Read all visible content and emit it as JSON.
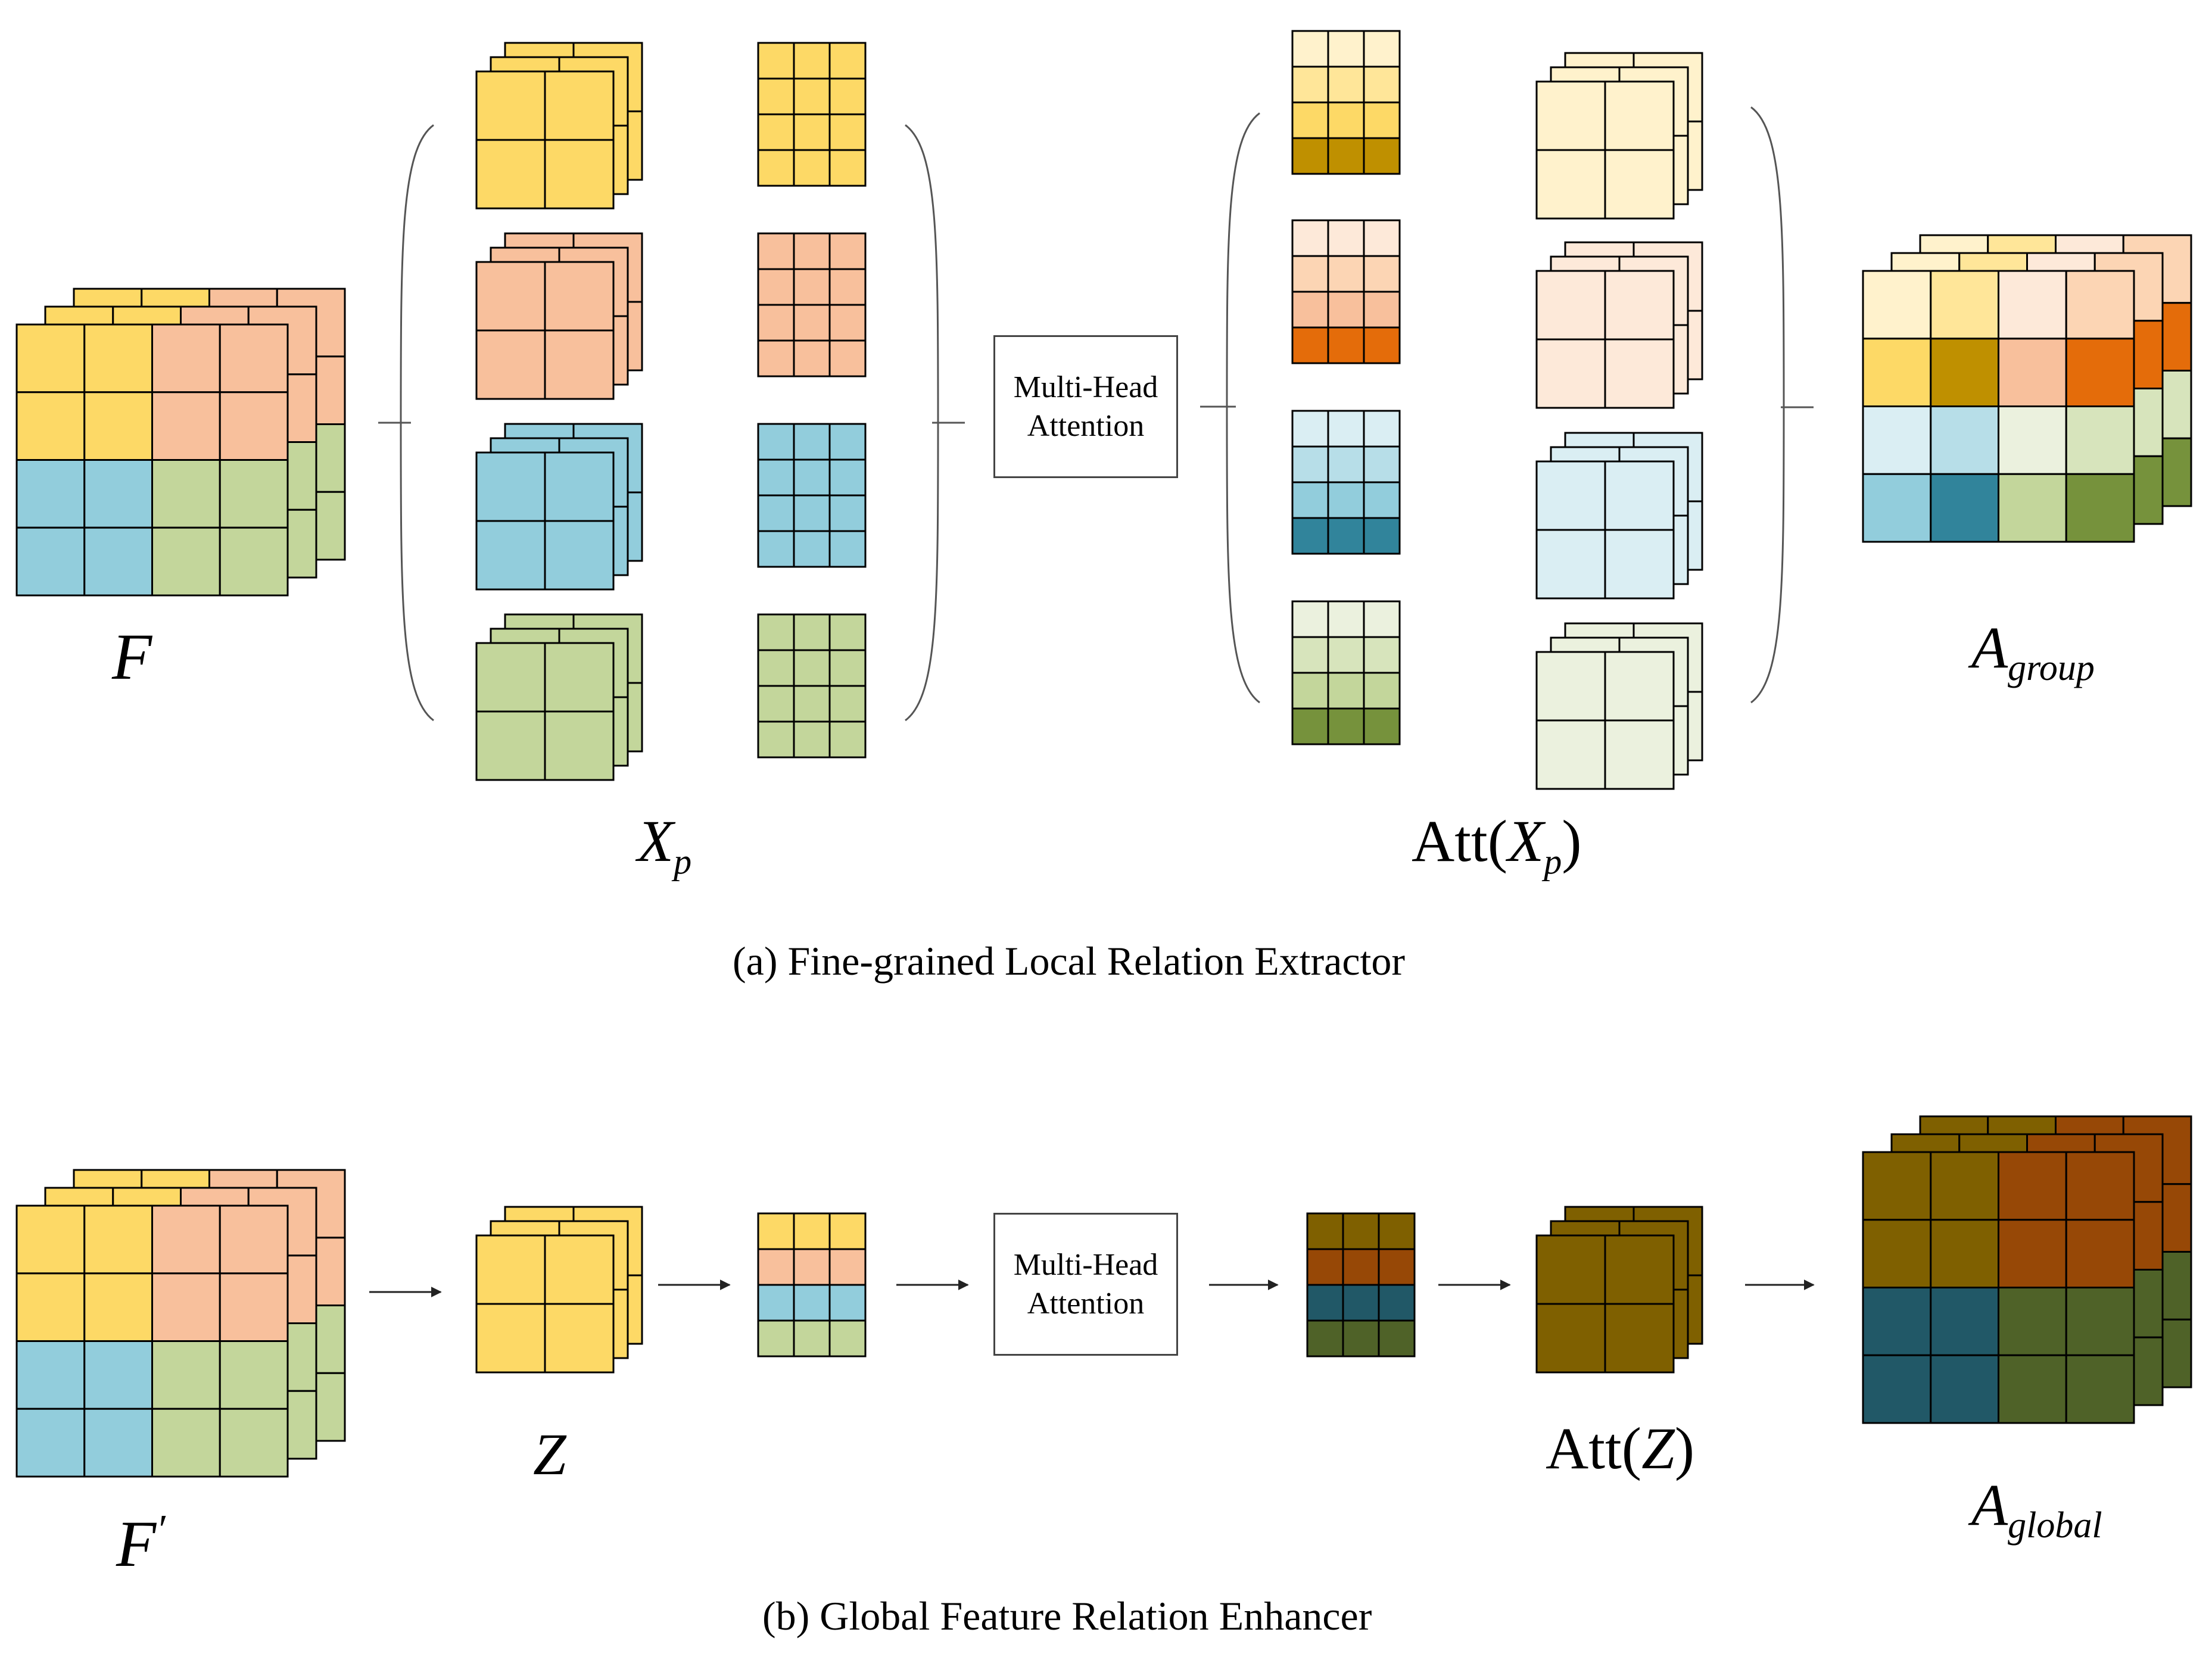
{
  "colors": {
    "yellow": "#FDD966",
    "orange": "#F8C09C",
    "blue": "#92CDDC",
    "green": "#C3D69B",
    "yellow_light": "#FFF2CC",
    "yellow_mid": "#FFE699",
    "yellow_dark": "#BF9000",
    "orange_light": "#FDE9D9",
    "orange_mid": "#FCD5B4",
    "orange_dark": "#E46C0A",
    "blue_light": "#DAEEF3",
    "blue_mid": "#B7DEE8",
    "blue_dark": "#31849B",
    "green_light": "#EBF1DE",
    "green_mid": "#D7E4BC",
    "green_dark": "#76923C",
    "global_yellow": "#7F6000",
    "global_orange": "#974806",
    "global_blue": "#215867",
    "global_green": "#4F6228",
    "grid_line": "#000000",
    "connector": "#555555"
  },
  "part_a": {
    "input_label": "F",
    "patches_label_base": "X",
    "patches_label_sub": "p",
    "attention_box": {
      "line1": "Multi-Head",
      "line2": "Attention"
    },
    "attention_output_prefix": "Att(",
    "attention_output_base": "X",
    "attention_output_sub": "p",
    "attention_output_suffix": ")",
    "output_label_base": "A",
    "output_label_sub": "group",
    "caption": "(a) Fine-grained Local Relation Extractor"
  },
  "part_b": {
    "input_label": "F",
    "input_label_prime": "′",
    "pooled_label": "Z",
    "attention_box": {
      "line1": "Multi-Head",
      "line2": "Attention"
    },
    "attention_output_prefix": "Att(",
    "attention_output_base": "Z",
    "attention_output_suffix": ")",
    "output_label_base": "A",
    "output_label_sub": "global",
    "caption": "(b) Global Feature Relation Enhancer"
  }
}
